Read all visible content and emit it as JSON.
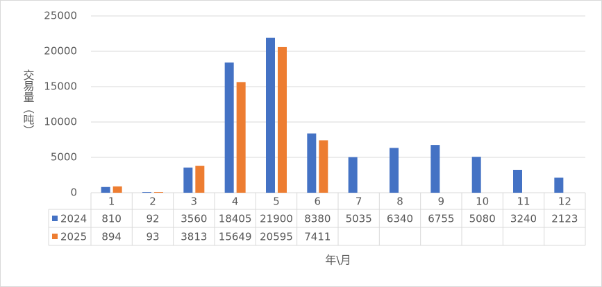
{
  "chart_data": {
    "type": "bar",
    "y_label": "交易量（吨）",
    "x_label": "年\\月",
    "categories": [
      "1",
      "2",
      "3",
      "4",
      "5",
      "6",
      "7",
      "8",
      "9",
      "10",
      "11",
      "12"
    ],
    "series": [
      {
        "name": "2024",
        "color": "#4472c4",
        "values": [
          810,
          92,
          3560,
          18405,
          21900,
          8380,
          5035,
          6340,
          6755,
          5080,
          3240,
          2123
        ]
      },
      {
        "name": "2025",
        "color": "#ed7d31",
        "values": [
          894,
          93,
          3813,
          15649,
          20595,
          7411,
          null,
          null,
          null,
          null,
          null,
          null
        ]
      }
    ],
    "ylim": [
      0,
      25000
    ],
    "yticks": [
      0,
      5000,
      10000,
      15000,
      20000,
      25000
    ],
    "grid": true,
    "legend": "data-table"
  }
}
